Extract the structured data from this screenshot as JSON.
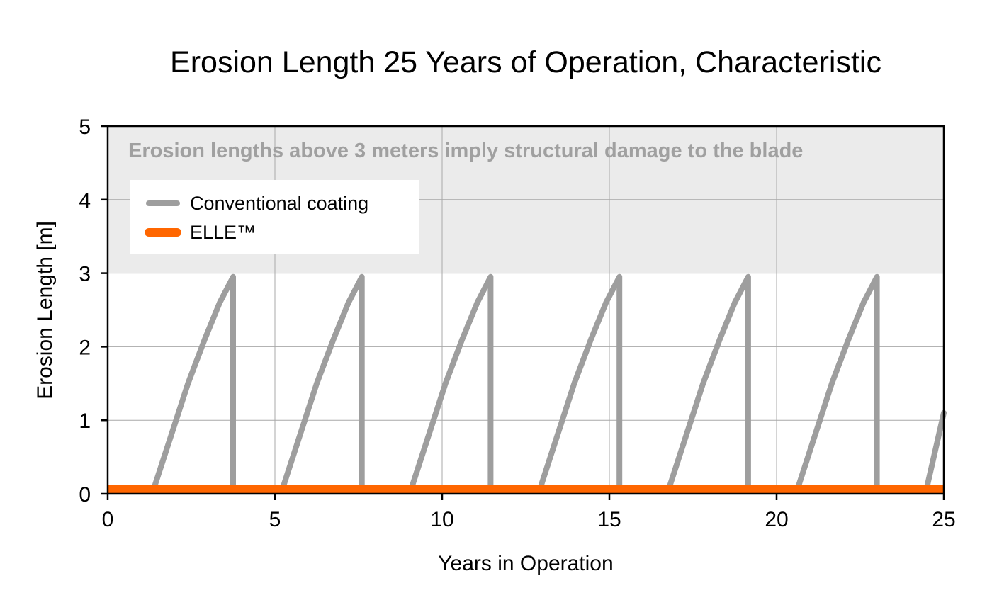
{
  "chart_data": {
    "type": "line",
    "title": "Erosion Length 25 Years of Operation, Characteristic",
    "xlabel": "Years in Operation",
    "ylabel": "Erosion Length [m]",
    "xlim": [
      0,
      25
    ],
    "ylim": [
      0,
      5
    ],
    "x_ticks": [
      "0",
      "5",
      "10",
      "15",
      "20",
      "25"
    ],
    "y_ticks": [
      "0",
      "1",
      "2",
      "3",
      "4",
      "5"
    ],
    "grid": true,
    "legend_position": "upper-left",
    "shaded_region": {
      "y_from": 3,
      "y_to": 5,
      "color": "#ebebeb",
      "annotation": "Erosion lengths above 3 meters imply structural damage to the blade",
      "annotation_color": "#a0a0a0"
    },
    "series": [
      {
        "name": "Conventional coating",
        "color": "#9e9e9e",
        "segments": [
          [
            [
              1.4,
              0.1
            ],
            [
              1.9,
              0.8
            ],
            [
              2.4,
              1.5
            ],
            [
              2.9,
              2.1
            ],
            [
              3.35,
              2.6
            ],
            [
              3.75,
              2.95
            ],
            [
              3.75,
              0.1
            ]
          ],
          [
            [
              5.25,
              0.1
            ],
            [
              5.75,
              0.8
            ],
            [
              6.25,
              1.5
            ],
            [
              6.75,
              2.1
            ],
            [
              7.2,
              2.6
            ],
            [
              7.6,
              2.95
            ],
            [
              7.6,
              0.1
            ]
          ],
          [
            [
              9.1,
              0.1
            ],
            [
              9.6,
              0.8
            ],
            [
              10.1,
              1.5
            ],
            [
              10.6,
              2.1
            ],
            [
              11.05,
              2.6
            ],
            [
              11.45,
              2.95
            ],
            [
              11.45,
              0.1
            ]
          ],
          [
            [
              12.95,
              0.1
            ],
            [
              13.45,
              0.8
            ],
            [
              13.95,
              1.5
            ],
            [
              14.45,
              2.1
            ],
            [
              14.9,
              2.6
            ],
            [
              15.3,
              2.95
            ],
            [
              15.3,
              0.1
            ]
          ],
          [
            [
              16.8,
              0.1
            ],
            [
              17.3,
              0.8
            ],
            [
              17.8,
              1.5
            ],
            [
              18.3,
              2.1
            ],
            [
              18.75,
              2.6
            ],
            [
              19.15,
              2.95
            ],
            [
              19.15,
              0.1
            ]
          ],
          [
            [
              20.65,
              0.1
            ],
            [
              21.15,
              0.8
            ],
            [
              21.65,
              1.5
            ],
            [
              22.15,
              2.1
            ],
            [
              22.6,
              2.6
            ],
            [
              23.0,
              2.95
            ],
            [
              23.0,
              0.1
            ]
          ],
          [
            [
              24.5,
              0.1
            ],
            [
              25.0,
              1.1
            ]
          ]
        ]
      },
      {
        "name": "ELLE™",
        "color": "#ff6600",
        "points": [
          [
            0,
            0.06
          ],
          [
            25,
            0.06
          ]
        ]
      }
    ]
  }
}
